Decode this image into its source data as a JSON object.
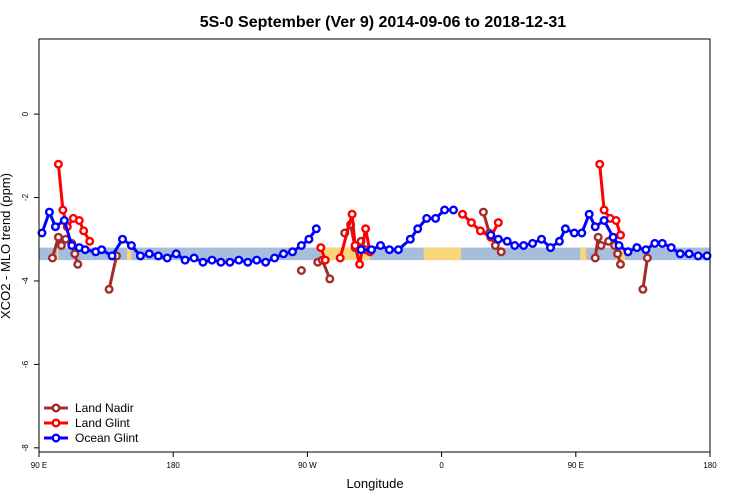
{
  "chart_data": {
    "type": "line",
    "title": "5S-0 September (Ver 9)   2014-09-06 to 2018-12-31",
    "xlabel": "Longitude",
    "ylabel": "XCO2 - MLO trend (ppm)",
    "xlim": [
      90,
      540
    ],
    "ylim": [
      -8.1,
      1.8
    ],
    "x_ticks": [
      {
        "value": 90,
        "label": "90 E"
      },
      {
        "value": 180,
        "label": "180"
      },
      {
        "value": 270,
        "label": "90 W"
      },
      {
        "value": 360,
        "label": "0"
      },
      {
        "value": 450,
        "label": "90 E"
      },
      {
        "value": 540,
        "label": "180"
      }
    ],
    "y_ticks": [
      {
        "value": 0,
        "label": "0"
      },
      {
        "value": -2,
        "label": "-2"
      },
      {
        "value": -4,
        "label": "-4"
      },
      {
        "value": -6,
        "label": "-6"
      },
      {
        "value": -8,
        "label": "-8"
      }
    ],
    "band": {
      "y_low": -3.5,
      "y_high": -3.2,
      "color": "#a6bddb",
      "land_color": "#f8d679",
      "land_ranges": [
        [
          102,
          103
        ],
        [
          149,
          152
        ],
        [
          279,
          312
        ],
        [
          348,
          373
        ],
        [
          453,
          457
        ],
        [
          477,
          483
        ]
      ]
    },
    "legend": {
      "position": "bottom-left",
      "entries": [
        {
          "label": "Land Nadir",
          "color": "#a52a2a"
        },
        {
          "label": "Land Glint",
          "color": "#ff0000"
        },
        {
          "label": "Ocean Glint",
          "color": "#0000ff"
        }
      ]
    },
    "series": [
      {
        "name": "Land Nadir",
        "color": "#a52a2a",
        "segments": [
          [
            [
              99,
              -3.45
            ],
            [
              103,
              -2.95
            ],
            [
              105,
              -3.15
            ],
            [
              108,
              -3.0
            ],
            [
              112,
              -3.1
            ],
            [
              114,
              -3.35
            ],
            [
              116,
              -3.6
            ]
          ],
          [
            [
              137,
              -4.2
            ],
            [
              142,
              -3.4
            ]
          ],
          [
            [
              266,
              -3.75
            ]
          ],
          [
            [
              277,
              -3.55
            ],
            [
              280,
              -3.5
            ],
            [
              285,
              -3.95
            ]
          ],
          [
            [
              295,
              -2.85
            ],
            [
              299,
              -2.65
            ],
            [
              302,
              -3.2
            ],
            [
              306,
              -3.05
            ],
            [
              309,
              -3.25
            ]
          ],
          [
            [
              388,
              -2.35
            ],
            [
              392,
              -2.85
            ],
            [
              396,
              -3.15
            ],
            [
              400,
              -3.3
            ]
          ],
          [
            [
              463,
              -3.45
            ],
            [
              465,
              -2.95
            ],
            [
              467,
              -3.15
            ],
            [
              472,
              -3.05
            ],
            [
              476,
              -3.15
            ],
            [
              478,
              -3.35
            ],
            [
              480,
              -3.6
            ]
          ],
          [
            [
              495,
              -4.2
            ],
            [
              498,
              -3.45
            ]
          ]
        ]
      },
      {
        "name": "Land Glint",
        "color": "#ff0000",
        "segments": [
          [
            [
              103,
              -1.2
            ],
            [
              106,
              -2.3
            ],
            [
              109,
              -2.7
            ],
            [
              113,
              -2.5
            ],
            [
              117,
              -2.55
            ],
            [
              120,
              -2.8
            ],
            [
              124,
              -3.05
            ]
          ],
          [
            [
              279,
              -3.2
            ],
            [
              282,
              -3.5
            ]
          ],
          [
            [
              292,
              -3.45
            ],
            [
              300,
              -2.4
            ],
            [
              302,
              -3.15
            ],
            [
              305,
              -3.6
            ],
            [
              309,
              -2.75
            ],
            [
              312,
              -3.3
            ]
          ],
          [
            [
              374,
              -2.4
            ],
            [
              380,
              -2.6
            ],
            [
              386,
              -2.8
            ],
            [
              393,
              -2.95
            ],
            [
              398,
              -2.6
            ]
          ],
          [
            [
              466,
              -1.2
            ],
            [
              469,
              -2.3
            ],
            [
              473,
              -2.5
            ],
            [
              477,
              -2.55
            ],
            [
              480,
              -2.9
            ]
          ]
        ]
      },
      {
        "name": "Ocean Glint",
        "color": "#0000ff",
        "segments": [
          [
            [
              92,
              -2.85
            ],
            [
              97,
              -2.35
            ],
            [
              101,
              -2.7
            ],
            [
              107,
              -2.55
            ],
            [
              112,
              -3.15
            ],
            [
              117,
              -3.2
            ],
            [
              121,
              -3.25
            ],
            [
              128,
              -3.3
            ],
            [
              132,
              -3.25
            ],
            [
              139,
              -3.4
            ],
            [
              146,
              -3.0
            ],
            [
              152,
              -3.15
            ],
            [
              158,
              -3.4
            ],
            [
              164,
              -3.35
            ],
            [
              170,
              -3.4
            ],
            [
              176,
              -3.45
            ],
            [
              182,
              -3.35
            ],
            [
              188,
              -3.5
            ],
            [
              194,
              -3.45
            ],
            [
              200,
              -3.55
            ],
            [
              206,
              -3.5
            ],
            [
              212,
              -3.55
            ],
            [
              218,
              -3.55
            ],
            [
              224,
              -3.5
            ],
            [
              230,
              -3.55
            ],
            [
              236,
              -3.5
            ],
            [
              242,
              -3.55
            ],
            [
              248,
              -3.45
            ],
            [
              254,
              -3.35
            ],
            [
              260,
              -3.3
            ],
            [
              266,
              -3.15
            ],
            [
              271,
              -3.0
            ],
            [
              276,
              -2.75
            ]
          ],
          [
            [
              306,
              -3.25
            ],
            [
              313,
              -3.25
            ],
            [
              319,
              -3.15
            ],
            [
              325,
              -3.25
            ],
            [
              331,
              -3.25
            ],
            [
              339,
              -3.0
            ],
            [
              344,
              -2.75
            ],
            [
              350,
              -2.5
            ],
            [
              356,
              -2.5
            ],
            [
              362,
              -2.3
            ],
            [
              368,
              -2.3
            ]
          ],
          [
            [
              393,
              -2.9
            ],
            [
              398,
              -3.0
            ],
            [
              404,
              -3.05
            ],
            [
              409,
              -3.15
            ],
            [
              415,
              -3.15
            ],
            [
              421,
              -3.1
            ],
            [
              427,
              -3.0
            ],
            [
              433,
              -3.2
            ],
            [
              439,
              -3.05
            ],
            [
              443,
              -2.75
            ],
            [
              449,
              -2.85
            ],
            [
              454,
              -2.85
            ],
            [
              459,
              -2.4
            ],
            [
              463,
              -2.7
            ],
            [
              469,
              -2.55
            ],
            [
              475,
              -2.95
            ],
            [
              479,
              -3.15
            ],
            [
              485,
              -3.3
            ],
            [
              491,
              -3.2
            ],
            [
              497,
              -3.25
            ],
            [
              503,
              -3.1
            ],
            [
              508,
              -3.1
            ],
            [
              514,
              -3.2
            ],
            [
              520,
              -3.35
            ],
            [
              526,
              -3.35
            ],
            [
              532,
              -3.4
            ],
            [
              538,
              -3.4
            ]
          ]
        ]
      }
    ]
  }
}
